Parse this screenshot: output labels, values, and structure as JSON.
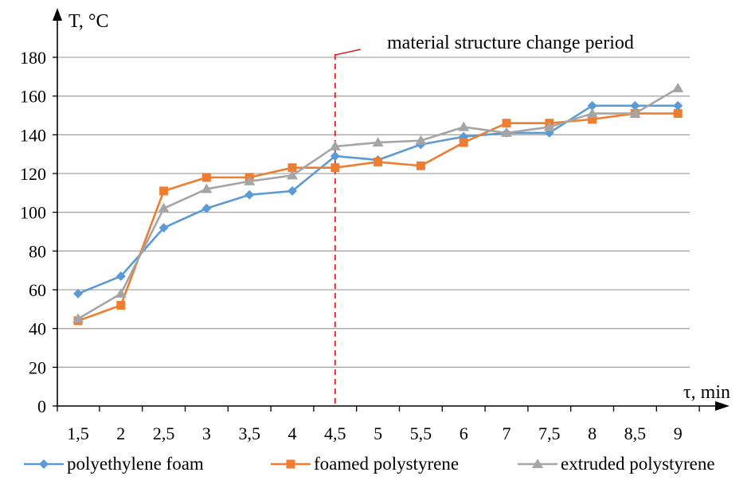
{
  "chart_data": {
    "type": "line",
    "title": "",
    "ylabel": "T, °C",
    "xlabel": "τ, min",
    "categories": [
      "1,5",
      "2",
      "2,5",
      "3",
      "3,5",
      "4",
      "4,5",
      "5",
      "5,5",
      "6",
      "7",
      "7,5",
      "8",
      "8,5",
      "9"
    ],
    "ylim": [
      0,
      180
    ],
    "yticks": [
      0,
      20,
      40,
      60,
      80,
      100,
      120,
      140,
      160,
      180
    ],
    "grid": true,
    "legend_position": "bottom",
    "annotation": {
      "text": "material structure change period",
      "at_category": "4,5",
      "color": "#e02020"
    },
    "series": [
      {
        "name": "polyethylene foam",
        "color": "#5b9bd5",
        "marker": "diamond",
        "values": [
          58,
          67,
          92,
          102,
          109,
          111,
          129,
          127,
          135,
          139,
          141,
          141,
          155,
          155,
          155
        ]
      },
      {
        "name": "foamed polystyrene",
        "color": "#ed7d31",
        "marker": "square",
        "values": [
          44,
          52,
          111,
          118,
          118,
          123,
          123,
          126,
          124,
          136,
          146,
          146,
          148,
          151,
          151
        ]
      },
      {
        "name": "extruded polystyrene",
        "color": "#a5a5a5",
        "marker": "triangle",
        "values": [
          45,
          58,
          102,
          112,
          116,
          119,
          134,
          136,
          137,
          144,
          141,
          144,
          151,
          151,
          164
        ]
      }
    ]
  }
}
